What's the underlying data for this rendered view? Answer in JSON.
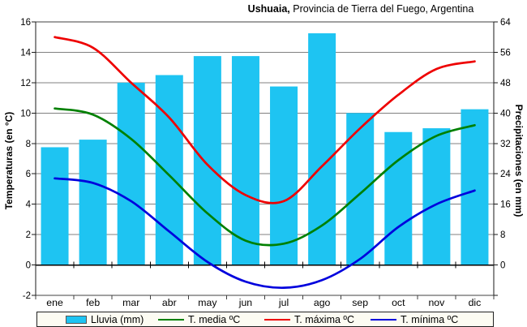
{
  "title": {
    "bold": "Ushuaia,",
    "rest": " Provincia de Tierra del Fuego, Argentina"
  },
  "axes": {
    "left": {
      "label": "Temperaturas (en °C)",
      "ticks": [
        "16",
        "14",
        "12",
        "10",
        "8",
        "6",
        "4",
        "2",
        "0",
        "-2"
      ]
    },
    "right": {
      "label": "Precipitaciones (en mm)",
      "ticks": [
        "64",
        "56",
        "48",
        "40",
        "32",
        "24",
        "16",
        "8",
        "0"
      ]
    }
  },
  "legend": [
    {
      "label": "Lluvia (mm)",
      "swatch": "bar",
      "color": "#1EC4F2"
    },
    {
      "label": "T. media ºC",
      "swatch": "line",
      "color": "#008000"
    },
    {
      "label": "T. máxima ºC",
      "swatch": "line",
      "color": "#EE0000"
    },
    {
      "label": "T. mínima ºC",
      "swatch": "line",
      "color": "#0000DD"
    }
  ],
  "chart_data": {
    "type": "combo",
    "title": "Ushuaia, Provincia de Tierra del Fuego, Argentina",
    "categories": [
      "ene",
      "feb",
      "mar",
      "abr",
      "may",
      "jun",
      "jul",
      "ago",
      "sep",
      "oct",
      "nov",
      "dic"
    ],
    "series": [
      {
        "name": "Lluvia (mm)",
        "type": "bar",
        "axis": "right_mm",
        "color": "#1EC4F2",
        "values": [
          31,
          33,
          48,
          50,
          55,
          55,
          47,
          61,
          40,
          35,
          36,
          41
        ]
      },
      {
        "name": "T. media ºC",
        "type": "line",
        "axis": "left_c",
        "color": "#008000",
        "values": [
          10.3,
          9.9,
          8.3,
          5.9,
          3.4,
          1.6,
          1.4,
          2.6,
          4.7,
          6.9,
          8.5,
          9.2
        ]
      },
      {
        "name": "T. máxima ºC",
        "type": "line",
        "axis": "left_c",
        "color": "#EE0000",
        "values": [
          15.0,
          14.3,
          12.0,
          9.7,
          6.6,
          4.6,
          4.2,
          6.5,
          9.0,
          11.2,
          12.9,
          13.4
        ]
      },
      {
        "name": "T. mínima ºC",
        "type": "line",
        "axis": "left_c",
        "color": "#0000DD",
        "values": [
          5.7,
          5.4,
          4.2,
          2.2,
          0.2,
          -1.1,
          -1.5,
          -1.0,
          0.4,
          2.5,
          4.0,
          4.9
        ]
      }
    ],
    "left_ylabel": "Temperaturas (en °C)",
    "right_ylabel": "Precipitaciones (en mm)",
    "left_ylim": [
      -2,
      16
    ],
    "left_step": 2,
    "right_ylim": [
      -8,
      64
    ],
    "right_step": 8,
    "grid": true,
    "legend_position": "bottom",
    "colors": {
      "gridline": "#808080",
      "plot_border": "#404040",
      "zero_axis": "#000000",
      "value_axis": "#1a1a1a",
      "background": "#ffffff",
      "legend_bg": "#FCFBF2"
    }
  }
}
